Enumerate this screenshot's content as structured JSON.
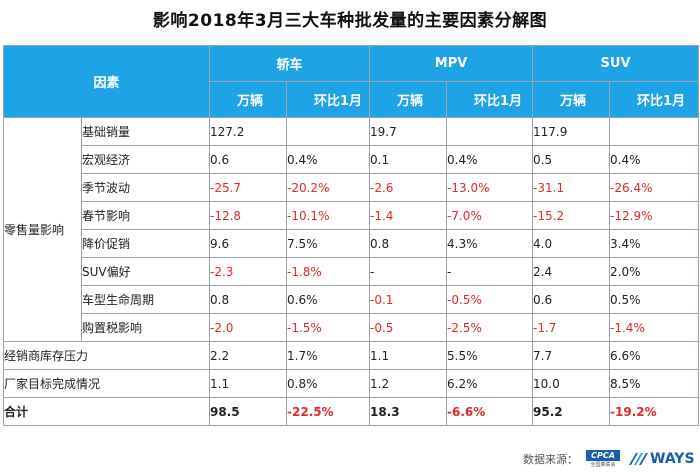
{
  "title": "影响2018年3月三大车种批发量的主要因素分解图",
  "header": {
    "factor": "因素",
    "groups": [
      "轿车",
      "MPV",
      "SUV"
    ],
    "sub_units": "万辆",
    "sub_mom": "环比1月"
  },
  "group_label": "零售量影响",
  "rows": [
    {
      "name": "基础销量",
      "v": [
        "127.2",
        "",
        "19.7",
        "",
        "117.9",
        ""
      ]
    },
    {
      "name": "宏观经济",
      "v": [
        "0.6",
        "0.4%",
        "0.1",
        "0.4%",
        "0.5",
        "0.4%"
      ]
    },
    {
      "name": "季节波动",
      "v": [
        "-25.7",
        "-20.2%",
        "-2.6",
        "-13.0%",
        "-31.1",
        "-26.4%"
      ]
    },
    {
      "name": "春节影响",
      "v": [
        "-12.8",
        "-10.1%",
        "-1.4",
        "-7.0%",
        "-15.2",
        "-12.9%"
      ]
    },
    {
      "name": "降价促销",
      "v": [
        "9.6",
        "7.5%",
        "0.8",
        "4.3%",
        "4.0",
        "3.4%"
      ]
    },
    {
      "name": "SUV偏好",
      "v": [
        "-2.3",
        "-1.8%",
        "-",
        "-",
        "2.4",
        "2.0%"
      ]
    },
    {
      "name": "车型生命周期",
      "v": [
        "0.8",
        "0.6%",
        "-0.1",
        "-0.5%",
        "0.6",
        "0.5%"
      ]
    },
    {
      "name": "购置税影响",
      "v": [
        "-2.0",
        "-1.5%",
        "-0.5",
        "-2.5%",
        "-1.7",
        "-1.4%"
      ]
    }
  ],
  "wide_rows": [
    {
      "name": "经销商库存压力",
      "v": [
        "2.2",
        "1.7%",
        "1.1",
        "5.5%",
        "7.7",
        "6.6%"
      ]
    },
    {
      "name": "厂家目标完成情况",
      "v": [
        "1.1",
        "0.8%",
        "1.2",
        "6.2%",
        "10.0",
        "8.5%"
      ]
    }
  ],
  "total": {
    "name": "合计",
    "v": [
      "98.5",
      "-22.5%",
      "18.3",
      "-6.6%",
      "95.2",
      "-19.2%"
    ]
  },
  "footer": {
    "source_label": "数据来源：",
    "cpca_text": "CPCA",
    "cpca_sub": "全国乘联会",
    "ways_text": "WAYS"
  },
  "colors": {
    "header_bg": "#1ea3e6",
    "negative": "#e0292b",
    "border": "#9aa3ab"
  }
}
